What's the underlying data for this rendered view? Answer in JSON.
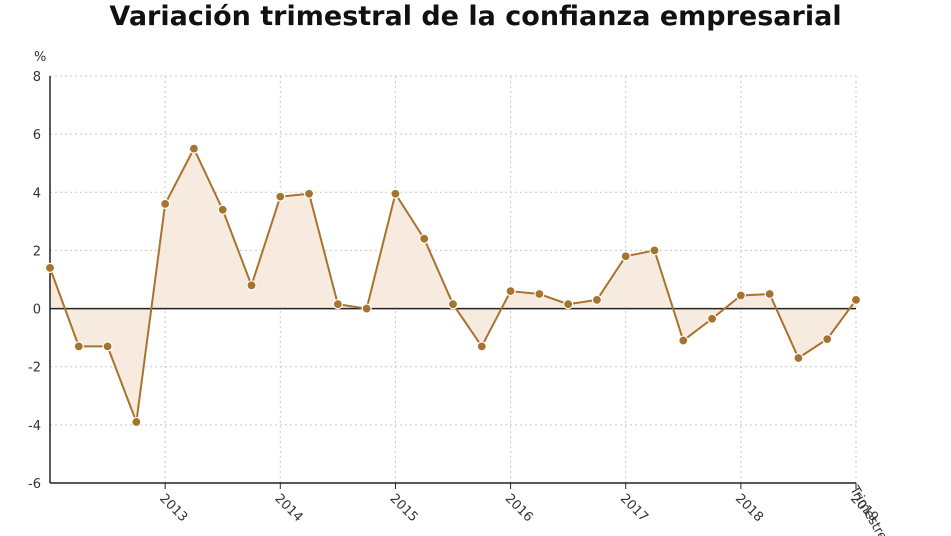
{
  "chart_data": {
    "type": "area",
    "title": "Variación trimestral de la confianza empresarial",
    "ylabel": "%",
    "xlabel": "Trimestre",
    "ylim": [
      -6,
      8
    ],
    "yticks": [
      -6,
      -4,
      -2,
      0,
      2,
      4,
      6,
      8
    ],
    "grid": true,
    "year_labels": [
      "2013",
      "2014",
      "2015",
      "2016",
      "2017",
      "2018",
      "2019"
    ],
    "x": [
      "2012-T4",
      "2013-T1",
      "2013-T2",
      "2013-T3",
      "2013-T4",
      "2014-T1",
      "2014-T2",
      "2014-T3",
      "2014-T4",
      "2015-T1",
      "2015-T2",
      "2015-T3",
      "2015-T4",
      "2016-T1",
      "2016-T2",
      "2016-T3",
      "2016-T4",
      "2017-T1",
      "2017-T2",
      "2017-T3",
      "2017-T4",
      "2018-T1",
      "2018-T2",
      "2018-T3",
      "2018-T4",
      "2019-T1",
      "2019-T2",
      "2019-T3",
      "2019-T4"
    ],
    "values": [
      1.4,
      -1.3,
      -1.3,
      -3.9,
      3.6,
      5.5,
      3.4,
      0.8,
      3.85,
      3.95,
      0.15,
      0.0,
      3.95,
      2.4,
      0.15,
      -1.3,
      0.6,
      0.5,
      0.15,
      0.3,
      1.8,
      2.0,
      -1.1,
      -0.35,
      0.45,
      0.5,
      -1.7,
      -1.05,
      0.3
    ],
    "line_color": "#a8732e",
    "fill_color": "#f6e9dc",
    "marker_color": "#a8732e"
  }
}
